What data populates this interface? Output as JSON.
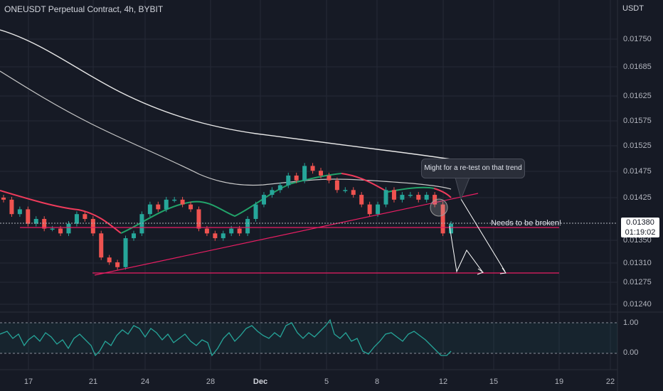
{
  "header": {
    "title": "ONEUSDT Perpetual Contract, 4h, BYBIT",
    "currency": "USDT"
  },
  "colors": {
    "up": "#26a69a",
    "down": "#ef5350",
    "hline": "#e91e63",
    "ema": "#e0e0e0",
    "osc": "#4db6ac"
  },
  "price_box": {
    "price": "0.01380",
    "countdown": "01:19:02"
  },
  "annotations": {
    "note": "Might for a re-test on that trend",
    "break_label": "Needs to be broken!"
  },
  "chart_data": {
    "type": "line",
    "price_axis": {
      "ticks": [
        "0.01750",
        "0.01685",
        "0.01625",
        "0.01575",
        "0.01525",
        "0.01475",
        "0.01425",
        "0.01350",
        "0.01310",
        "0.01275",
        "0.01240"
      ],
      "ylim": [
        0.0122,
        0.0181
      ]
    },
    "x_ticks": [
      "17",
      "21",
      "24",
      "28",
      "Dec",
      "5",
      "8",
      "12",
      "15",
      "19",
      "22"
    ],
    "oscillator_ticks": [
      "1.00",
      "0.00"
    ],
    "levels": [
      {
        "name": "resistance",
        "value": 0.01372
      },
      {
        "name": "support",
        "value": 0.01295
      }
    ],
    "close_approx": [
      0.0144,
      0.0141,
      0.0142,
      0.0139,
      0.014,
      0.0138,
      0.0138,
      0.0137,
      0.0139,
      0.0141,
      0.014,
      0.0137,
      0.0132,
      0.0131,
      0.013,
      0.0136,
      0.0137,
      0.0141,
      0.0143,
      0.0142,
      0.0144,
      0.0144,
      0.0143,
      0.0142,
      0.0138,
      0.0137,
      0.0136,
      0.0137,
      0.0138,
      0.0137,
      0.014,
      0.0143,
      0.0145,
      0.0146,
      0.0147,
      0.0149,
      0.0148,
      0.0151,
      0.015,
      0.0149,
      0.0148,
      0.0146,
      0.0146,
      0.0145,
      0.0143,
      0.0141,
      0.0143,
      0.0146,
      0.0144,
      0.0145,
      0.0145,
      0.0144,
      0.0145,
      0.0143,
      0.0137,
      0.0139
    ]
  }
}
